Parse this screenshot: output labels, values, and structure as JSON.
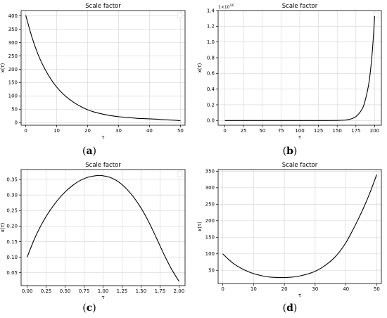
{
  "chart_data": [
    {
      "id": "a",
      "type": "line",
      "title": "Scale factor",
      "xlabel": "τ",
      "ylabel": "x(τ)",
      "caption": "a",
      "xlim": [
        -1.5,
        51.5
      ],
      "ylim": [
        -10,
        420
      ],
      "xticks": [
        0,
        10,
        20,
        30,
        40,
        50
      ],
      "yticks": [
        0,
        50,
        100,
        150,
        200,
        250,
        300,
        350,
        400
      ],
      "y_multiplier": "",
      "grid": true,
      "legend": "top-right",
      "series": [
        {
          "color": "#000000",
          "x": [
            0,
            2,
            4,
            6,
            8,
            10,
            12,
            14,
            16,
            18,
            20,
            22,
            24,
            26,
            28,
            30,
            32,
            34,
            36,
            38,
            40,
            42,
            44,
            46,
            48,
            50
          ],
          "y": [
            402,
            320,
            255,
            205,
            165,
            133,
            108,
            88,
            72,
            59,
            48,
            40,
            34,
            29,
            25,
            22,
            20,
            18,
            16,
            15,
            14,
            13,
            11,
            10,
            9,
            7
          ]
        }
      ]
    },
    {
      "id": "b",
      "type": "line",
      "title": "Scale factor",
      "xlabel": "τ",
      "ylabel": "x(τ)",
      "caption": "b",
      "xlim": [
        -9,
        209
      ],
      "ylim": [
        -0.06,
        1.4
      ],
      "xticks": [
        0,
        25,
        50,
        75,
        100,
        125,
        150,
        175,
        200
      ],
      "yticks": [
        0.0,
        0.2,
        0.4,
        0.6,
        0.8,
        1.0,
        1.2,
        1.4
      ],
      "y_multiplier": "1e16",
      "grid": true,
      "legend": "top-right",
      "series": [
        {
          "color": "#000000",
          "x": [
            0,
            25,
            50,
            75,
            100,
            125,
            150,
            160,
            165,
            170,
            175,
            180,
            185,
            190,
            193,
            196,
            198,
            200
          ],
          "y": [
            0,
            0,
            0,
            0,
            0,
            0,
            0.001,
            0.005,
            0.012,
            0.025,
            0.05,
            0.1,
            0.18,
            0.36,
            0.52,
            0.78,
            1.02,
            1.33
          ]
        }
      ]
    },
    {
      "id": "c",
      "type": "line",
      "title": "Scale factor",
      "xlabel": "τ",
      "ylabel": "x(τ)",
      "caption": "c",
      "xlim": [
        -0.08,
        2.08
      ],
      "ylim": [
        0.008,
        0.382
      ],
      "xticks": [
        0.0,
        0.25,
        0.5,
        0.75,
        1.0,
        1.25,
        1.5,
        1.75,
        2.0
      ],
      "yticks": [
        0.05,
        0.1,
        0.15,
        0.2,
        0.25,
        0.3,
        0.35
      ],
      "y_multiplier": "",
      "grid": true,
      "legend": "top-right",
      "series": [
        {
          "color": "#000000",
          "x": [
            0.0,
            0.1,
            0.2,
            0.3,
            0.4,
            0.5,
            0.6,
            0.7,
            0.8,
            0.9,
            0.95,
            1.0,
            1.1,
            1.2,
            1.3,
            1.4,
            1.5,
            1.6,
            1.7,
            1.8,
            1.9,
            2.0
          ],
          "y": [
            0.1,
            0.161,
            0.21,
            0.25,
            0.283,
            0.31,
            0.331,
            0.347,
            0.357,
            0.362,
            0.363,
            0.362,
            0.356,
            0.343,
            0.322,
            0.294,
            0.258,
            0.214,
            0.163,
            0.11,
            0.062,
            0.022
          ]
        }
      ]
    },
    {
      "id": "d",
      "type": "line",
      "title": "Scale factor",
      "xlabel": "τ",
      "ylabel": "x(τ)",
      "caption": "d",
      "xlim": [
        -1.5,
        51.5
      ],
      "ylim": [
        10,
        355
      ],
      "xticks": [
        0,
        10,
        20,
        30,
        40,
        50
      ],
      "yticks": [
        50,
        100,
        150,
        200,
        250,
        300,
        350
      ],
      "y_multiplier": "",
      "grid": true,
      "legend": "top-right",
      "series": [
        {
          "color": "#000000",
          "x": [
            0,
            2,
            4,
            6,
            8,
            10,
            12,
            14,
            16,
            18,
            20,
            22,
            24,
            26,
            28,
            30,
            32,
            34,
            36,
            38,
            40,
            42,
            44,
            46,
            48,
            50
          ],
          "y": [
            100,
            82,
            67,
            56,
            47,
            40,
            35,
            31,
            29,
            28,
            28,
            29,
            31,
            35,
            40,
            47,
            57,
            70,
            86,
            107,
            134,
            168,
            205,
            245,
            290,
            340
          ]
        }
      ]
    }
  ]
}
